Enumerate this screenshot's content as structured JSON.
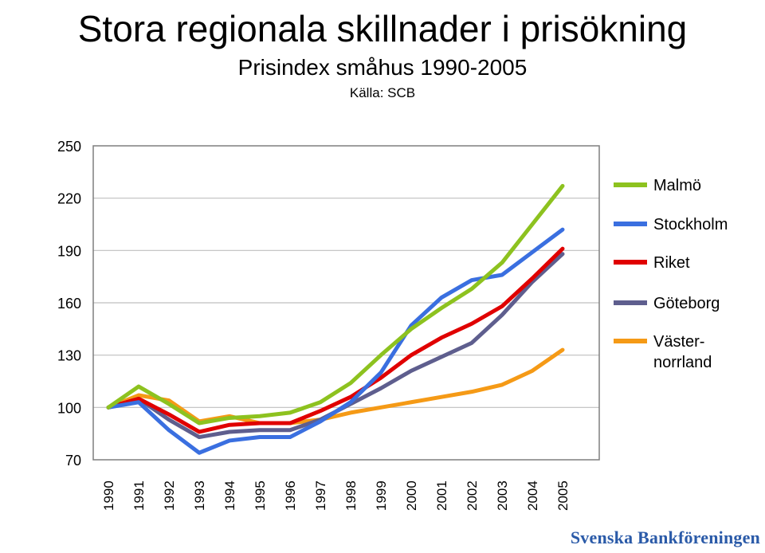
{
  "header": {
    "title": "Stora regionala skillnader i prisökning",
    "subtitle": "Prisindex småhus 1990-2005",
    "source": "Källa: SCB"
  },
  "brand": {
    "name": "Svenska Bankföreningen",
    "color": "#2a5aa8"
  },
  "chart_data": {
    "type": "line",
    "x": [
      "1990",
      "1991",
      "1992",
      "1993",
      "1994",
      "1995",
      "1996",
      "1997",
      "1998",
      "1999",
      "2000",
      "2001",
      "2002",
      "2003",
      "2004",
      "2005"
    ],
    "ylim": [
      70,
      250
    ],
    "yticks": [
      250,
      220,
      190,
      160,
      130,
      100,
      70
    ],
    "grid": true,
    "legend_position": "right",
    "series": [
      {
        "name": "Malmö",
        "color": "#8dc21f",
        "values": [
          100,
          112,
          102,
          91,
          94,
          95,
          97,
          103,
          114,
          130,
          145,
          157,
          168,
          183,
          205,
          227
        ]
      },
      {
        "name": "Stockholm",
        "color": "#3a6fe0",
        "values": [
          100,
          103,
          87,
          74,
          81,
          83,
          83,
          92,
          103,
          120,
          147,
          163,
          173,
          176,
          189,
          202
        ]
      },
      {
        "name": "Riket",
        "color": "#e00000",
        "values": [
          100,
          105,
          96,
          86,
          90,
          91,
          91,
          98,
          106,
          117,
          130,
          140,
          148,
          158,
          174,
          191
        ]
      },
      {
        "name": "Göteborg",
        "color": "#5e5e8e",
        "values": [
          100,
          105,
          93,
          83,
          86,
          87,
          87,
          93,
          102,
          111,
          121,
          129,
          137,
          153,
          172,
          188
        ]
      },
      {
        "name": "Väster-norrland",
        "color": "#f59a16",
        "label_lines": [
          "Väster-",
          "norrland"
        ],
        "values": [
          100,
          107,
          104,
          92,
          95,
          91,
          91,
          93,
          97,
          100,
          103,
          106,
          109,
          113,
          121,
          133
        ]
      }
    ]
  }
}
